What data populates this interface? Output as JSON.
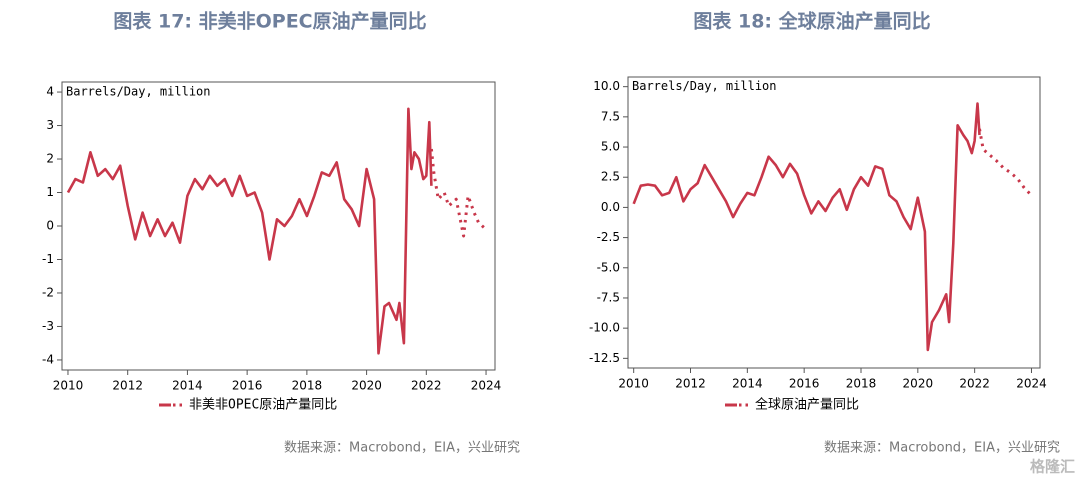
{
  "chart_data": [
    {
      "type": "line",
      "title": "图表 17: 非美非OPEC原油产量同比",
      "ylabel": "Barrels/Day, million",
      "source": "数据来源：Macrobond，EIA，兴业研究",
      "xlim": [
        2009.8,
        2024.3
      ],
      "xticks": [
        2010,
        2012,
        2014,
        2016,
        2018,
        2020,
        2022,
        2024
      ],
      "ylim": [
        -4.3,
        4.3
      ],
      "yticks": [
        -4,
        -3,
        -2,
        -1,
        0,
        1,
        2,
        3,
        4
      ],
      "series": [
        {
          "name": "非美非OPEC原油产量同比",
          "color": "#c8374a",
          "style": "solid",
          "x": [
            2010.0,
            2010.25,
            2010.5,
            2010.75,
            2011.0,
            2011.25,
            2011.5,
            2011.75,
            2012.0,
            2012.25,
            2012.5,
            2012.75,
            2013.0,
            2013.25,
            2013.5,
            2013.75,
            2014.0,
            2014.25,
            2014.5,
            2014.75,
            2015.0,
            2015.25,
            2015.5,
            2015.75,
            2016.0,
            2016.25,
            2016.5,
            2016.75,
            2017.0,
            2017.25,
            2017.5,
            2017.75,
            2018.0,
            2018.25,
            2018.5,
            2018.75,
            2019.0,
            2019.25,
            2019.5,
            2019.75,
            2020.0,
            2020.25,
            2020.4,
            2020.6,
            2020.75,
            2021.0,
            2021.1,
            2021.25,
            2021.4,
            2021.5,
            2021.6,
            2021.75,
            2021.9,
            2022.0,
            2022.1,
            2022.17
          ],
          "values": [
            1.0,
            1.4,
            1.3,
            2.2,
            1.5,
            1.7,
            1.4,
            1.8,
            0.6,
            -0.4,
            0.4,
            -0.3,
            0.2,
            -0.3,
            0.1,
            -0.5,
            0.9,
            1.4,
            1.1,
            1.5,
            1.2,
            1.4,
            0.9,
            1.5,
            0.9,
            1.0,
            0.4,
            -1.0,
            0.2,
            0.0,
            0.3,
            0.8,
            0.3,
            0.9,
            1.6,
            1.5,
            1.9,
            0.8,
            0.5,
            0.0,
            1.7,
            0.8,
            -3.8,
            -2.4,
            -2.3,
            -2.8,
            -2.3,
            -3.5,
            3.5,
            1.7,
            2.2,
            2.0,
            1.4,
            1.5,
            3.1,
            1.2
          ]
        },
        {
          "color": "#c8374a",
          "style": "dotted",
          "x": [
            2022.17,
            2022.25,
            2022.4,
            2022.6,
            2022.75,
            2023.0,
            2023.25,
            2023.4,
            2023.6,
            2023.75,
            2024.0
          ],
          "values": [
            2.3,
            1.6,
            0.8,
            1.0,
            0.6,
            0.8,
            -0.3,
            0.9,
            0.4,
            0.1,
            -0.1
          ]
        }
      ]
    },
    {
      "type": "line",
      "title": "图表 18: 全球原油产量同比",
      "ylabel": "Barrels/Day, million",
      "source": "数据来源：Macrobond，EIA，兴业研究",
      "xlim": [
        2009.8,
        2024.3
      ],
      "xticks": [
        2010,
        2012,
        2014,
        2016,
        2018,
        2020,
        2022,
        2024
      ],
      "ylim": [
        -13.3,
        10.8
      ],
      "yticks": [
        {
          "value": -12.5,
          "label": "-12.5"
        },
        {
          "value": -10,
          "label": "-10.0"
        },
        -7.5,
        {
          "value": -5,
          "label": "-5.0"
        },
        -2.5,
        {
          "value": 0,
          "label": "0.0"
        },
        2.5,
        {
          "value": 5,
          "label": "5.0"
        },
        7.5,
        {
          "value": 10,
          "label": "10.0"
        }
      ],
      "series": [
        {
          "name": "全球原油产量同比",
          "color": "#c8374a",
          "style": "solid",
          "x": [
            2010.0,
            2010.25,
            2010.5,
            2010.75,
            2011.0,
            2011.25,
            2011.5,
            2011.75,
            2012.0,
            2012.25,
            2012.5,
            2012.75,
            2013.0,
            2013.25,
            2013.5,
            2013.75,
            2014.0,
            2014.25,
            2014.5,
            2014.75,
            2015.0,
            2015.25,
            2015.5,
            2015.75,
            2016.0,
            2016.25,
            2016.5,
            2016.75,
            2017.0,
            2017.25,
            2017.5,
            2017.75,
            2018.0,
            2018.25,
            2018.5,
            2018.75,
            2019.0,
            2019.25,
            2019.5,
            2019.75,
            2020.0,
            2020.25,
            2020.35,
            2020.5,
            2020.75,
            2021.0,
            2021.1,
            2021.25,
            2021.4,
            2021.6,
            2021.75,
            2021.9,
            2022.0,
            2022.1,
            2022.17
          ],
          "values": [
            0.3,
            1.8,
            1.9,
            1.8,
            1.0,
            1.2,
            2.5,
            0.5,
            1.5,
            2.0,
            3.5,
            2.5,
            1.5,
            0.5,
            -0.8,
            0.3,
            1.2,
            1.0,
            2.5,
            4.2,
            3.5,
            2.5,
            3.6,
            2.8,
            1.0,
            -0.5,
            0.5,
            -0.3,
            0.8,
            1.5,
            -0.2,
            1.5,
            2.5,
            1.8,
            3.4,
            3.2,
            1.0,
            0.5,
            -0.8,
            -1.8,
            0.8,
            -2.0,
            -11.8,
            -9.5,
            -8.5,
            -7.2,
            -9.5,
            -3.0,
            6.8,
            6.0,
            5.5,
            4.5,
            5.5,
            8.6,
            6.0
          ]
        },
        {
          "color": "#c8374a",
          "style": "dotted",
          "x": [
            2022.17,
            2022.3,
            2022.5,
            2022.75,
            2023.0,
            2023.25,
            2023.5,
            2023.75,
            2024.0
          ],
          "values": [
            6.5,
            4.8,
            4.4,
            3.9,
            3.3,
            2.9,
            2.4,
            1.6,
            1.0
          ]
        }
      ]
    }
  ],
  "watermark": "格隆汇"
}
